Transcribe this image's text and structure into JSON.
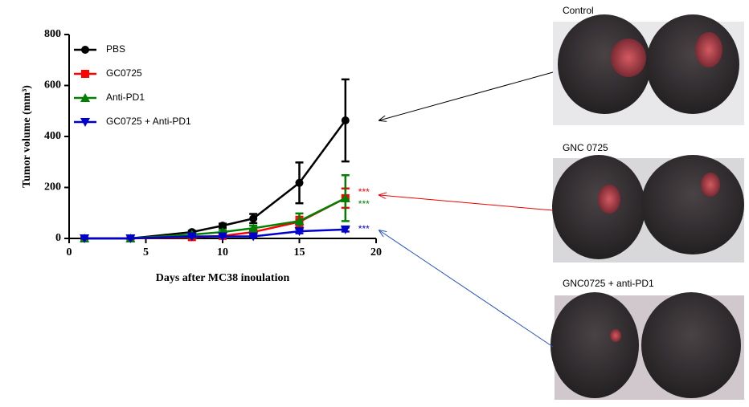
{
  "chart_data": {
    "type": "line",
    "xlabel": "Days after MC38 inoulation",
    "ylabel": "Tumor volume (mm³)",
    "x": [
      1,
      4,
      8,
      10,
      12,
      15,
      18
    ],
    "xlim": [
      0,
      20
    ],
    "xticks": [
      0,
      5,
      10,
      15,
      20
    ],
    "ylim": [
      0,
      800
    ],
    "yticks": [
      0,
      200,
      400,
      600,
      800
    ],
    "legend": "upper left",
    "series": [
      {
        "name": "PBS",
        "color": "#000000",
        "marker": "circle",
        "values": [
          0,
          0,
          25,
          50,
          78,
          218,
          463
        ],
        "errors": [
          0,
          0,
          5,
          8,
          18,
          80,
          161
        ]
      },
      {
        "name": "GC0725",
        "color": "#ff0000",
        "marker": "square",
        "values": [
          0,
          0,
          5,
          10,
          25,
          65,
          158
        ],
        "errors": [
          0,
          0,
          3,
          5,
          8,
          20,
          38
        ]
      },
      {
        "name": "Anti-PD1",
        "color": "#008000",
        "marker": "triangle-up",
        "values": [
          0,
          0,
          15,
          25,
          40,
          68,
          158
        ],
        "errors": [
          0,
          0,
          5,
          8,
          10,
          30,
          90
        ]
      },
      {
        "name": "GC0725 + Anti-PD1",
        "color": "#0000cc",
        "marker": "triangle-down",
        "values": [
          0,
          0,
          8,
          8,
          8,
          28,
          35
        ],
        "errors": [
          0,
          0,
          3,
          3,
          3,
          8,
          8
        ]
      }
    ],
    "annotations": [
      {
        "text": "***",
        "color": "#ff0000"
      },
      {
        "text": "***",
        "color": "#008000"
      },
      {
        "text": "***",
        "color": "#0000cc"
      }
    ]
  },
  "photos": [
    {
      "label": "Control"
    },
    {
      "label": "GNC 0725"
    },
    {
      "label": "GNC0725 + anti-PD1"
    }
  ]
}
